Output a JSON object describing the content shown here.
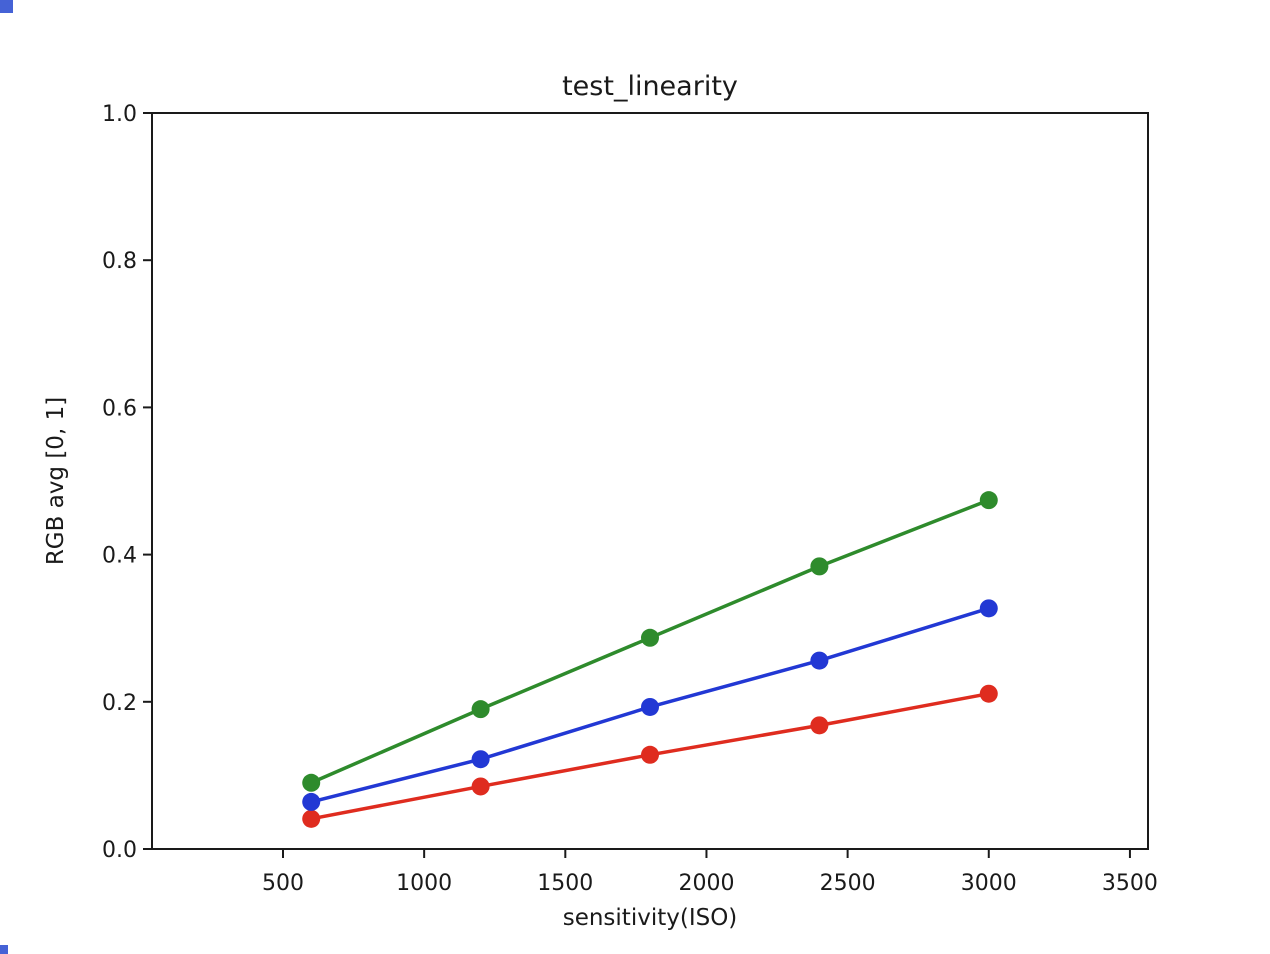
{
  "chart_data": {
    "type": "line",
    "title": "test_linearity",
    "xlabel": "sensitivity(ISO)",
    "ylabel": "RGB avg [0, 1]",
    "xlim": [
      36,
      3564
    ],
    "ylim": [
      0,
      1.0
    ],
    "x_ticks": [
      500,
      1000,
      1500,
      2000,
      2500,
      3000,
      3500
    ],
    "x_tick_labels": [
      "500",
      "1000",
      "1500",
      "2000",
      "2500",
      "3000",
      "3500"
    ],
    "y_ticks": [
      0.0,
      0.2,
      0.4,
      0.6,
      0.8,
      1.0
    ],
    "y_tick_labels": [
      "0.0",
      "0.2",
      "0.4",
      "0.6",
      "0.8",
      "1.0"
    ],
    "grid": false,
    "legend": "none",
    "frame_color": "#1a1a1a",
    "x": [
      600,
      1200,
      1800,
      2400,
      3000
    ],
    "series": [
      {
        "name": "red",
        "color": "#df2c1f",
        "values": [
          0.041,
          0.085,
          0.128,
          0.168,
          0.211
        ]
      },
      {
        "name": "blue",
        "color": "#2238d4",
        "values": [
          0.064,
          0.122,
          0.193,
          0.256,
          0.327
        ]
      },
      {
        "name": "green",
        "color": "#2e8b2c",
        "values": [
          0.09,
          0.19,
          0.287,
          0.384,
          0.474
        ]
      }
    ]
  },
  "artifacts": {
    "corner_color": "#4562d6"
  }
}
